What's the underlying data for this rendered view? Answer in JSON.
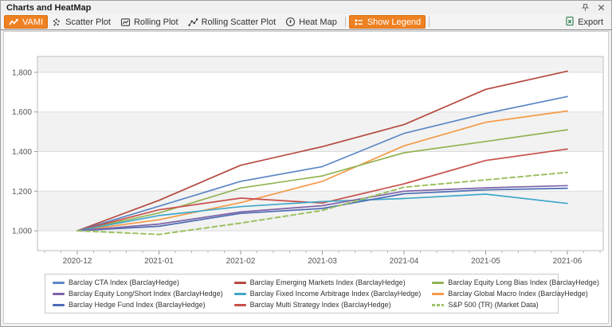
{
  "window": {
    "title": "Charts and HeatMap"
  },
  "titlebar": {
    "icons": [
      "pin-icon",
      "close-icon"
    ]
  },
  "toolbar": {
    "buttons": [
      {
        "label": "VAMI",
        "icon": "line-chart-icon",
        "active": true
      },
      {
        "label": "Scatter Plot",
        "icon": "scatter-icon",
        "active": false
      },
      {
        "label": "Rolling Plot",
        "icon": "rolling-plot-icon",
        "active": false
      },
      {
        "label": "Rolling Scatter Plot",
        "icon": "rolling-scatter-icon",
        "active": false
      },
      {
        "label": "Heat Map",
        "icon": "heatmap-icon",
        "active": false
      },
      {
        "label": "Show Legend",
        "icon": "legend-icon",
        "active": true
      }
    ],
    "export_label": "Export",
    "export_icon": "excel-export-icon",
    "active_color": "#EE8122"
  },
  "chart_data": {
    "type": "line",
    "title": "",
    "xlabel": "",
    "ylabel": "",
    "x_categories": [
      "2020-12",
      "2021-01",
      "2021-02",
      "2021-03",
      "2021-04",
      "2021-05",
      "2021-06"
    ],
    "ylim": [
      900,
      1880
    ],
    "yticks": [
      1000,
      1200,
      1400,
      1600,
      1800
    ],
    "grid": "horizontal",
    "band_fill": "#f2f2f2",
    "legend_position": "bottom",
    "series": [
      {
        "name": "Barclay CTA Index (BarclayHedge)",
        "color": "#5C87C5",
        "dash": false,
        "values": [
          1000,
          1124,
          1250,
          1324,
          1492,
          1592,
          1678
        ]
      },
      {
        "name": "Barclay Emerging Markets Index (BarclayHedge)",
        "color": "#B4493F",
        "dash": false,
        "values": [
          1000,
          1154,
          1331,
          1425,
          1536,
          1714,
          1806
        ]
      },
      {
        "name": "Barclay Equity Long Bias Index (BarclayHedge)",
        "color": "#94B354",
        "dash": false,
        "values": [
          1000,
          1090,
          1216,
          1277,
          1394,
          1451,
          1510
        ]
      },
      {
        "name": "Barclay Equity Long/Short Index (BarclayHedge)",
        "color": "#7E63A8",
        "dash": false,
        "values": [
          1000,
          1034,
          1095,
          1127,
          1200,
          1217,
          1228
        ]
      },
      {
        "name": "Barclay Fixed Income Arbitrage Index (BarclayHedge)",
        "color": "#3FA8C9",
        "dash": false,
        "values": [
          1000,
          1077,
          1122,
          1148,
          1163,
          1185,
          1138
        ]
      },
      {
        "name": "Barclay Global Macro Index (BarclayHedge)",
        "color": "#F59A47",
        "dash": false,
        "values": [
          1000,
          1056,
          1142,
          1250,
          1429,
          1548,
          1605
        ]
      },
      {
        "name": "Barclay Hedge Fund Index (BarclayHedge)",
        "color": "#4D6DB5",
        "dash": false,
        "values": [
          1000,
          1023,
          1088,
          1113,
          1187,
          1207,
          1215
        ]
      },
      {
        "name": "Barclay Multi Strategy Index (BarclayHedge)",
        "color": "#C7504B",
        "dash": false,
        "values": [
          1000,
          1106,
          1165,
          1140,
          1237,
          1355,
          1413
        ]
      },
      {
        "name": "S&P 500 (TR) (Market Data)",
        "color": "#9DC162",
        "dash": true,
        "values": [
          1000,
          982,
          1039,
          1103,
          1220,
          1257,
          1295
        ]
      }
    ]
  }
}
